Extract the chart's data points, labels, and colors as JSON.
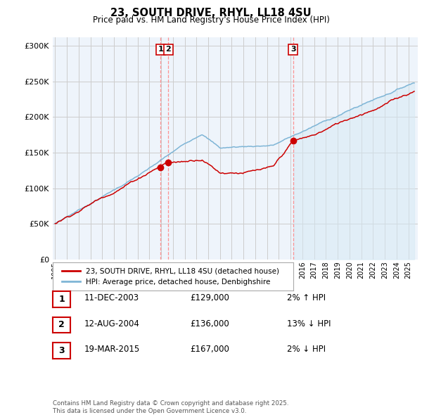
{
  "title": "23, SOUTH DRIVE, RHYL, LL18 4SU",
  "subtitle": "Price paid vs. HM Land Registry's House Price Index (HPI)",
  "ylabel_ticks": [
    "£0",
    "£50K",
    "£100K",
    "£150K",
    "£200K",
    "£250K",
    "£300K"
  ],
  "ytick_values": [
    0,
    50000,
    100000,
    150000,
    200000,
    250000,
    300000
  ],
  "ylim": [
    0,
    312000
  ],
  "xlim_start": 1994.8,
  "xlim_end": 2025.8,
  "hpi_color": "#7EB5D6",
  "hpi_fill_color": "#D6E9F5",
  "price_color": "#CC0000",
  "dashed_line_color": "#FF8888",
  "background_color": "#EEF4FB",
  "grid_color": "#CCCCCC",
  "sale_dates": [
    2003.95,
    2004.62,
    2015.22
  ],
  "sale_prices": [
    129000,
    136000,
    167000
  ],
  "sale_labels": [
    "1",
    "2",
    "3"
  ],
  "legend_entries": [
    "23, SOUTH DRIVE, RHYL, LL18 4SU (detached house)",
    "HPI: Average price, detached house, Denbighshire"
  ],
  "table_rows": [
    {
      "num": "1",
      "date": "11-DEC-2003",
      "price": "£129,000",
      "change": "2% ↑ HPI"
    },
    {
      "num": "2",
      "date": "12-AUG-2004",
      "price": "£136,000",
      "change": "13% ↓ HPI"
    },
    {
      "num": "3",
      "date": "19-MAR-2015",
      "price": "£167,000",
      "change": "2% ↓ HPI"
    }
  ],
  "footer": "Contains HM Land Registry data © Crown copyright and database right 2025.\nThis data is licensed under the Open Government Licence v3.0."
}
